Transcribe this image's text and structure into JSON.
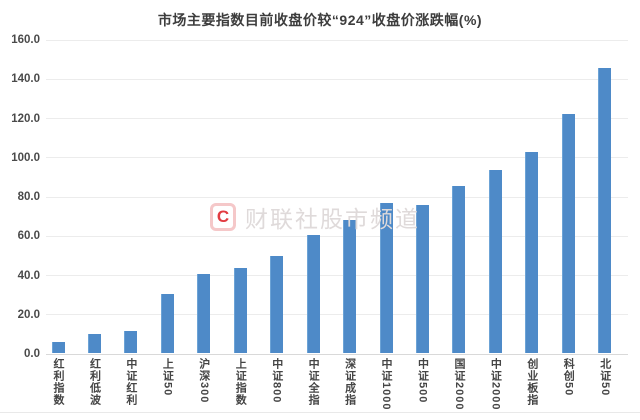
{
  "title": "市场主要指数目前收盘价较“924”收盘价涨跌幅(%)",
  "watermark": {
    "logo_letter": "C",
    "text": "财联社股市频道",
    "logo_color": "#e23b41",
    "text_color": "#dfdada"
  },
  "chart_data": {
    "type": "bar",
    "title": "市场主要指数目前收盘价较“924”收盘价涨跌幅(%)",
    "categories": [
      "红利指数",
      "红利低波",
      "中证红利",
      "上证50",
      "沪深300",
      "上证指数",
      "中证800",
      "中证全指",
      "深证成指",
      "中证1000",
      "中证500",
      "国证2000",
      "中证2000",
      "创业板指",
      "科创50",
      "北证50"
    ],
    "values": [
      5.5,
      9.7,
      11.1,
      30.1,
      40.3,
      43.3,
      49.5,
      60.1,
      67.7,
      76.2,
      75.6,
      85.2,
      93.1,
      102.4,
      121.9,
      145.3
    ],
    "xlabel": "",
    "ylabel": "",
    "ylim": [
      0,
      160
    ],
    "ytick_step": 20,
    "ytick_labels": [
      "0.0",
      "20.0",
      "40.0",
      "60.0",
      "80.0",
      "100.0",
      "120.0",
      "140.0",
      "160.0"
    ],
    "bar_color": "#4E8AC8",
    "grid": true,
    "legend": false
  }
}
